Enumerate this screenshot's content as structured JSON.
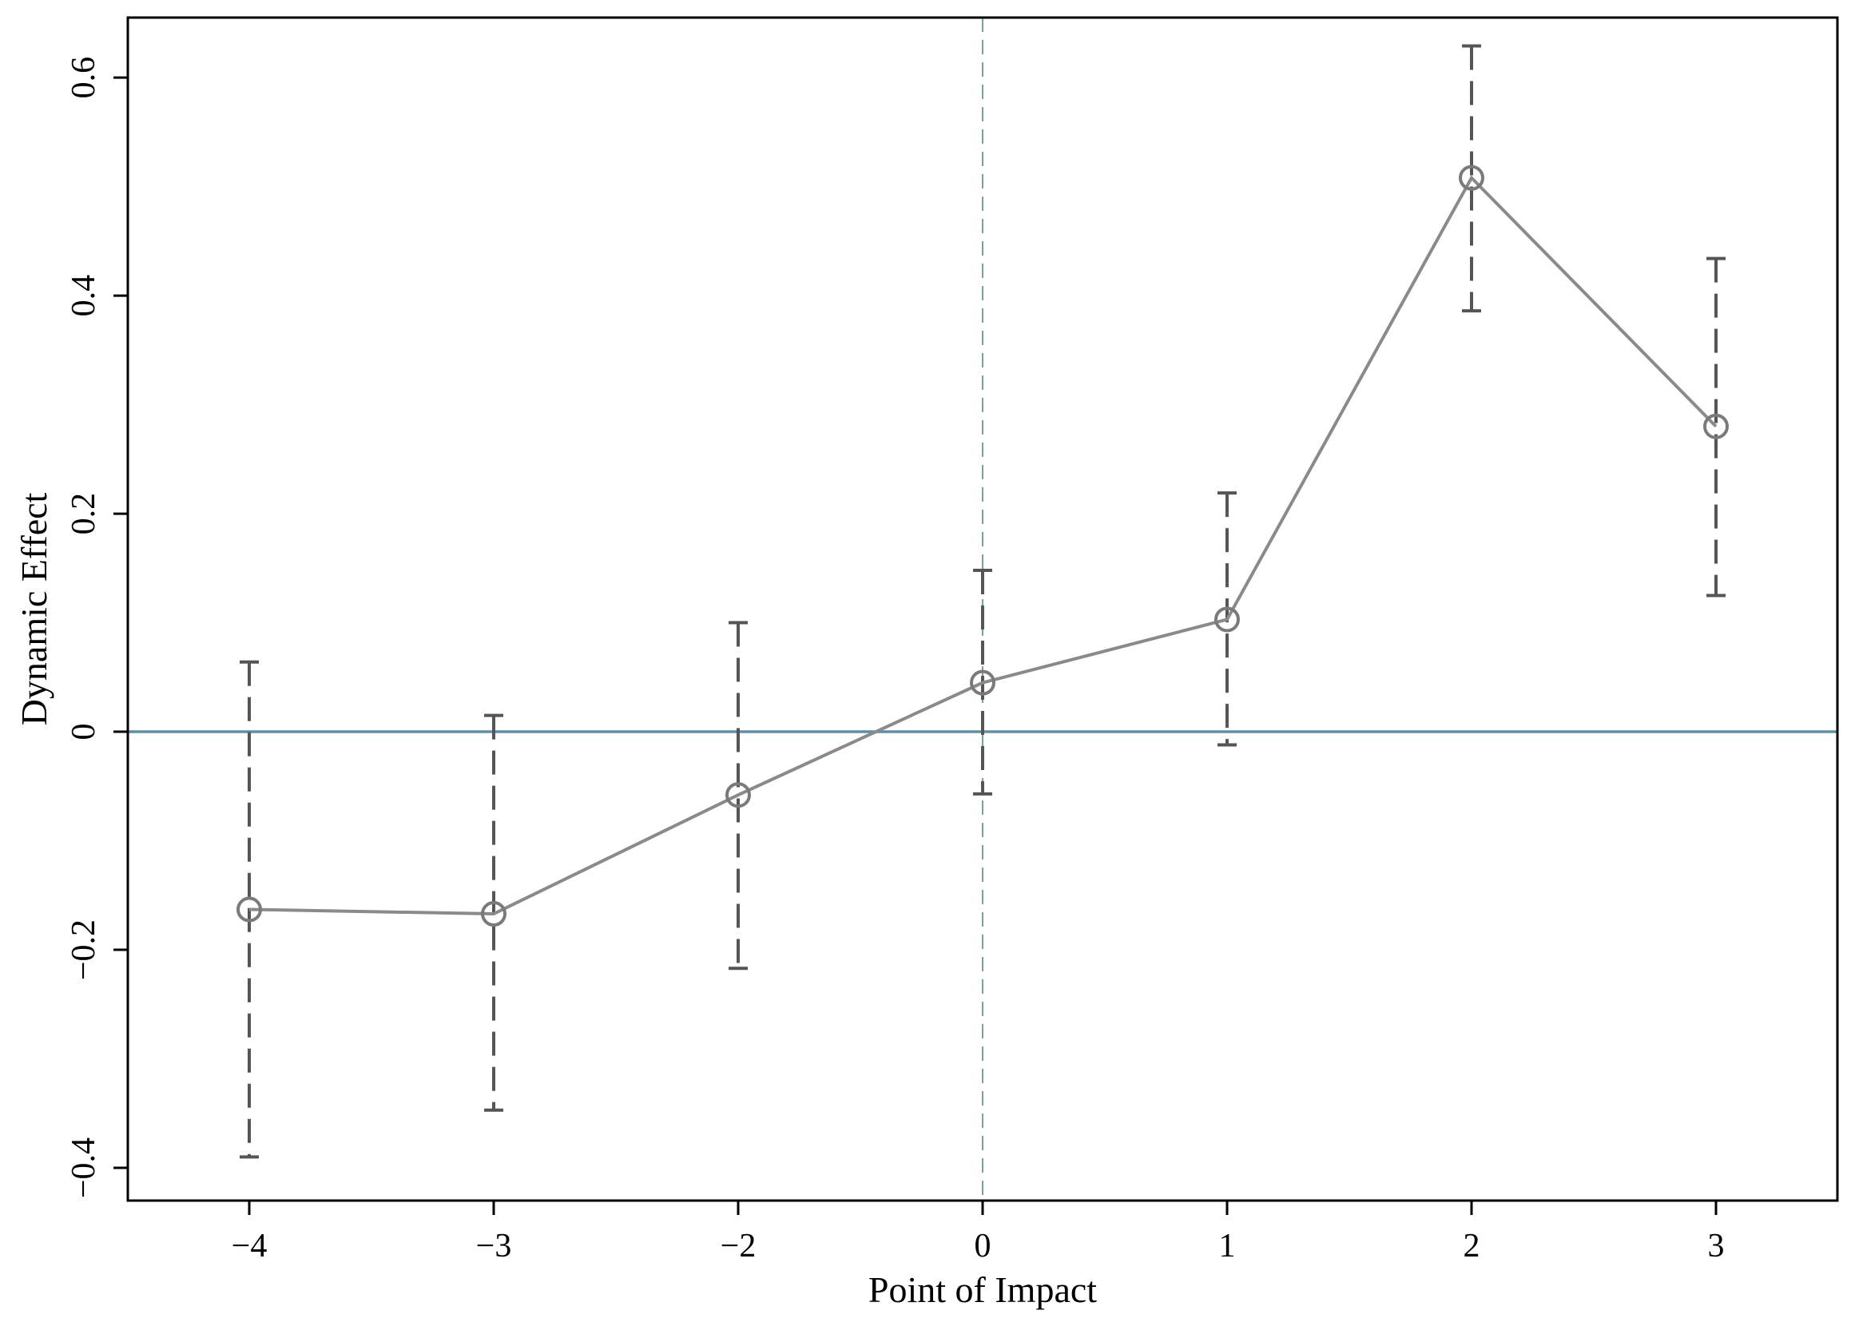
{
  "chart_data": {
    "type": "line",
    "title": "",
    "xlabel": "Point of Impact",
    "ylabel": "Dynamic Effect",
    "categories": [
      "−4",
      "−3",
      "−2",
      "0",
      "1",
      "2",
      "3"
    ],
    "y_ticks": [
      {
        "value": -0.4,
        "label": "−0.4"
      },
      {
        "value": -0.2,
        "label": "−0.2"
      },
      {
        "value": 0,
        "label": "0"
      },
      {
        "value": 0.2,
        "label": "0.2"
      },
      {
        "value": 0.4,
        "label": "0.4"
      },
      {
        "value": 0.6,
        "label": "0.6"
      }
    ],
    "ylim": [
      -0.43,
      0.655
    ],
    "series": [
      {
        "values": [
          -0.163,
          -0.167,
          -0.058,
          0.045,
          0.103,
          0.508,
          0.28
        ],
        "ci_low": [
          -0.39,
          -0.347,
          -0.217,
          -0.057,
          -0.012,
          0.386,
          0.125
        ],
        "ci_high": [
          0.064,
          0.015,
          0.1,
          0.148,
          0.219,
          0.629,
          0.434
        ]
      }
    ],
    "reference_lines": {
      "horizontal_at": 0,
      "horizontal_color": "#5b8fa8",
      "vertical_at_category": "0",
      "vertical_color": "#7aa394"
    },
    "grid": false,
    "legend": "none",
    "colors": {
      "series_line": "#8a8a8a",
      "marker": "#7a7a7a",
      "error_bar": "#555555",
      "frame": "#000000"
    }
  }
}
